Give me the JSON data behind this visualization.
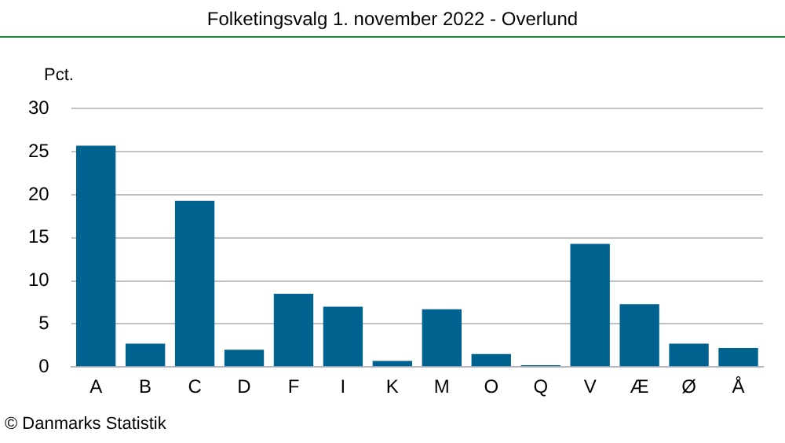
{
  "chart_data": {
    "type": "bar",
    "title": "Folketingsvalg 1. november 2022 - Overlund",
    "ylabel": "Pct.",
    "categories": [
      "A",
      "B",
      "C",
      "D",
      "F",
      "I",
      "K",
      "M",
      "O",
      "Q",
      "V",
      "Æ",
      "Ø",
      "Å"
    ],
    "values": [
      25.7,
      2.7,
      19.3,
      2.0,
      8.5,
      7.0,
      0.7,
      6.7,
      1.5,
      0.2,
      14.3,
      7.3,
      2.7,
      2.2
    ],
    "color": "#00628f",
    "ylim": [
      0,
      30
    ],
    "yticks": [
      0,
      5,
      10,
      15,
      20,
      25,
      30
    ],
    "grid": "y",
    "annotations": [
      "© Danmarks Statistik"
    ]
  }
}
